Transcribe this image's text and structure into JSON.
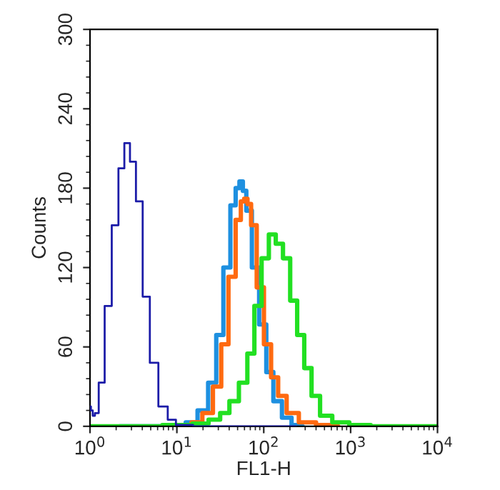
{
  "chart_data": {
    "type": "step",
    "xlabel": "FL1-H",
    "ylabel": "Counts",
    "log": "x",
    "grid": false,
    "legend": false,
    "marker": "none",
    "line_style": "solid",
    "xlim": [
      1,
      10000
    ],
    "xticks": [
      {
        "value": 1,
        "label": "10$^{0}$"
      },
      {
        "value": 10,
        "label": "10$^{1}$"
      },
      {
        "value": 100,
        "label": "10$^{2}$"
      },
      {
        "value": 1000,
        "label": "10$^{3}$"
      },
      {
        "value": 10000,
        "label": "10$^{4}$"
      }
    ],
    "ylim": [
      0,
      300
    ],
    "yticks": [
      0,
      60,
      120,
      180,
      240,
      300
    ],
    "series": [
      {
        "color": "#1c1ca8",
        "x": [
          1,
          1.05,
          1.1,
          1.18,
          1.34,
          1.61,
          1.95,
          2.3,
          2.67,
          3.1,
          3.66,
          4.42,
          5.35,
          6.9,
          8.8,
          10.7,
          20,
          50,
          100,
          235
        ],
        "values": [
          15,
          12,
          8,
          10,
          33,
          91,
          152,
          195,
          214,
          200,
          170,
          98,
          48,
          15,
          5,
          1,
          0,
          0,
          0,
          0
        ]
      },
      {
        "color": "#1e90e0",
        "x": [
          2.2,
          5,
          10.7,
          14.6,
          20,
          25.8,
          31,
          37.6,
          45,
          50,
          55,
          60,
          66,
          80,
          97,
          117,
          141,
          183,
          235,
          280
        ],
        "values": [
          0,
          0,
          1,
          3,
          12,
          33,
          69,
          120,
          167,
          180,
          185,
          178,
          163,
          120,
          77,
          41,
          19,
          6.5,
          1,
          0
        ]
      },
      {
        "color": "#ff6a10",
        "x": [
          10,
          12.9,
          16.6,
          22.7,
          29.3,
          35.5,
          43,
          52,
          57,
          62,
          68,
          75,
          91,
          110,
          133,
          160,
          207,
          300,
          500,
          720
        ],
        "values": [
          0,
          1,
          3,
          10,
          30,
          62,
          113,
          156,
          170,
          172,
          168,
          152,
          105,
          62,
          37,
          23,
          10,
          3,
          1,
          0
        ]
      },
      {
        "color": "#22e022",
        "x": [
          1,
          2.2,
          11.4,
          18.8,
          27.5,
          35.5,
          45,
          58.5,
          71,
          85,
          104,
          125,
          150,
          183,
          220,
          265,
          320,
          390,
          500,
          730,
          1200,
          2200,
          10000
        ],
        "values": [
          0,
          0,
          1,
          2,
          5,
          10,
          19,
          33,
          55,
          91,
          127,
          145,
          138,
          127,
          95,
          69,
          44,
          23,
          8,
          3,
          1,
          0,
          0
        ]
      }
    ]
  }
}
